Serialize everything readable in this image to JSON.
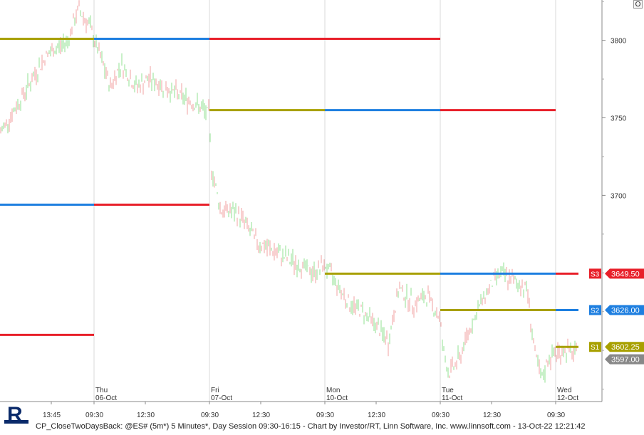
{
  "chart_data": {
    "type": "candlestick",
    "title": "CP_CloseTwoDaysBack: @ES# (5m*) 5 Minutes*, Day Session 09:30-16:15 - Chart by Investor/RT, Linn Software, Inc. www.linnsoft.com - 13-Oct-22 12:21:42",
    "y_ticks": [
      3700,
      3750,
      3800
    ],
    "ylim": [
      3567,
      3826
    ],
    "x_time_labels": [
      "13:45",
      "09:30",
      "12:30",
      "09:30",
      "12:30",
      "09:30",
      "12:30",
      "09:30",
      "12:30",
      "09:30"
    ],
    "day_labels": [
      {
        "day": "Thu",
        "date": "06-Oct"
      },
      {
        "day": "Fri",
        "date": "07-Oct"
      },
      {
        "day": "Mon",
        "date": "10-Oct"
      },
      {
        "day": "Tue",
        "date": "11-Oct"
      },
      {
        "day": "Wed",
        "date": "12-Oct"
      }
    ],
    "levels": [
      {
        "seg": [
          [
            0,
            1,
            3801,
            "olive"
          ],
          [
            1,
            2,
            3801,
            "blue"
          ],
          [
            2,
            3,
            3801,
            "red"
          ],
          [
            3,
            4,
            3801,
            "red"
          ]
        ]
      },
      {
        "seg": [
          [
            2,
            3,
            3755,
            "olive"
          ],
          [
            3,
            4,
            3755,
            "blue"
          ],
          [
            4,
            5,
            3755,
            "red"
          ]
        ]
      },
      {
        "seg": [
          [
            0,
            1,
            3694,
            "blue"
          ],
          [
            1,
            2,
            3694,
            "red"
          ]
        ]
      },
      {
        "seg": [
          [
            0,
            1,
            3610,
            "red"
          ]
        ]
      },
      {
        "seg": [
          [
            3,
            4,
            3649.5,
            "olive"
          ],
          [
            4,
            5,
            3649.5,
            "blue"
          ],
          [
            5,
            6,
            3649.5,
            "red"
          ]
        ]
      },
      {
        "seg": [
          [
            4,
            5,
            3626,
            "olive"
          ],
          [
            5,
            6,
            3626,
            "blue"
          ]
        ]
      },
      {
        "seg": [
          [
            5,
            6,
            3602.25,
            "olive"
          ]
        ]
      }
    ],
    "level_labels": [
      {
        "tag": "S3",
        "value": "3649.50",
        "color": "#e8202a"
      },
      {
        "tag": "S2",
        "value": "3626.00",
        "color": "#1e7fe0"
      },
      {
        "tag": "S1",
        "value": "3602.25",
        "color": "#a8a000"
      }
    ],
    "last_price": "3597.00",
    "colors": {
      "olive": "#a8a000",
      "blue": "#1e7fe0",
      "red": "#e8202a",
      "up": "#90e090",
      "down": "#f0a0a0",
      "grid": "#d8d8d8"
    }
  },
  "toolbar": {
    "zoom_label": "O"
  },
  "footer": {
    "text": "CP_CloseTwoDaysBack: @ES# (5m*) 5 Minutes*, Day Session 09:30-16:15 - Chart by Investor/RT, Linn Software, Inc. www.linnsoft.com - 13-Oct-22 12:21:42"
  }
}
